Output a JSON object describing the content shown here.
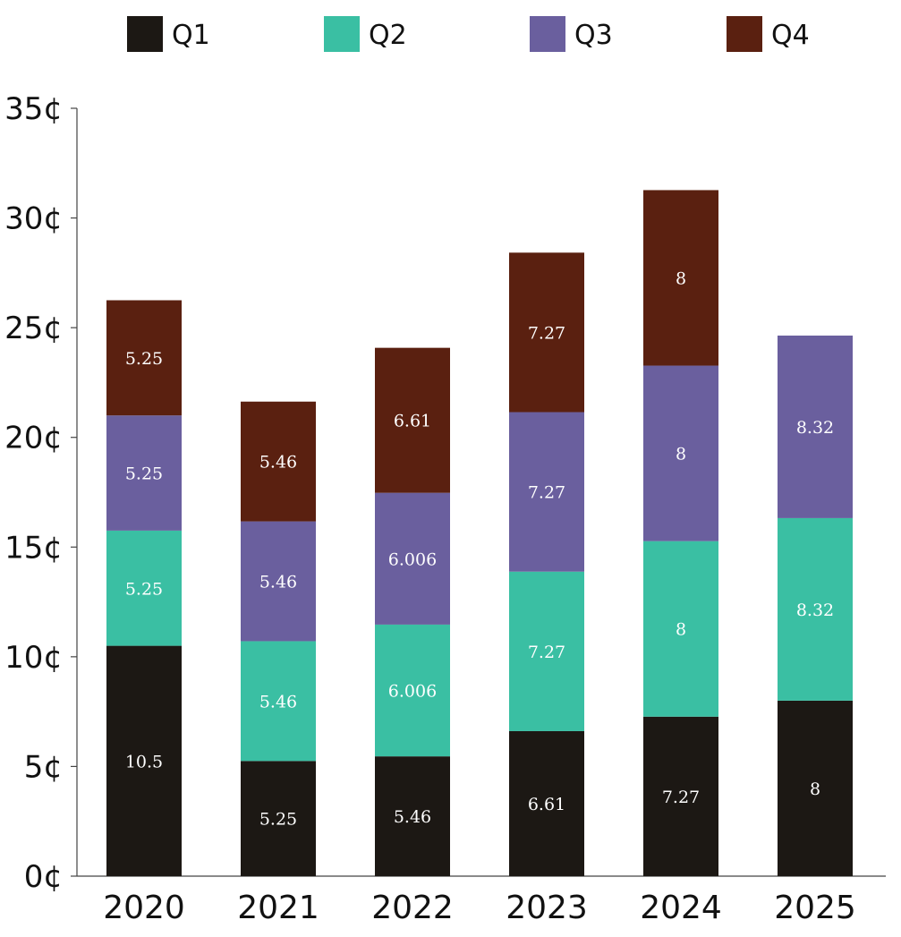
{
  "chart_data": {
    "type": "bar",
    "stacked": true,
    "title": "",
    "xlabel": "",
    "ylabel": "",
    "categories": [
      "2020",
      "2021",
      "2022",
      "2023",
      "2024",
      "2025"
    ],
    "series": [
      {
        "name": "Q1",
        "color": "#1c1814",
        "values": [
          10.5,
          5.25,
          5.46,
          6.61,
          7.27,
          8
        ],
        "labels": [
          "10.5",
          "5.25",
          "5.46",
          "6.61",
          "7.27",
          "8"
        ]
      },
      {
        "name": "Q2",
        "color": "#3abfa3",
        "values": [
          5.25,
          5.46,
          6.006,
          7.27,
          8,
          8.32
        ],
        "labels": [
          "5.25",
          "5.46",
          "6.006",
          "7.27",
          "8",
          "8.32"
        ]
      },
      {
        "name": "Q3",
        "color": "#6a5f9e",
        "values": [
          5.25,
          5.46,
          6.006,
          7.27,
          8,
          8.32
        ],
        "labels": [
          "5.25",
          "5.46",
          "6.006",
          "7.27",
          "8",
          "8.32"
        ]
      },
      {
        "name": "Q4",
        "color": "#5a2010",
        "values": [
          5.25,
          5.46,
          6.61,
          7.27,
          8,
          null
        ],
        "labels": [
          "5.25",
          "5.46",
          "6.61",
          "7.27",
          "8",
          null
        ]
      }
    ],
    "ylim": [
      0,
      35
    ],
    "yticks": [
      0,
      5,
      10,
      15,
      20,
      25,
      30,
      35
    ],
    "ytick_labels": [
      "0¢",
      "5¢",
      "10¢",
      "15¢",
      "20¢",
      "25¢",
      "30¢",
      "35¢"
    ],
    "grid": false,
    "legend_position": "top"
  }
}
